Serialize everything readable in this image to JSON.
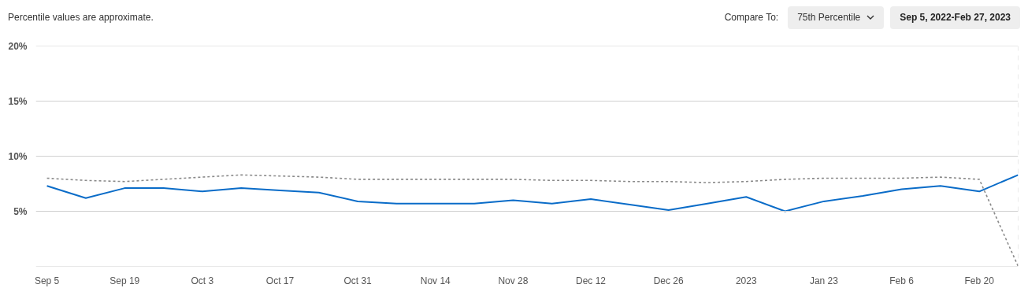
{
  "chart_data": {
    "type": "line",
    "annotations": [
      "Percentile values are approximate.",
      "Compare To:",
      "75th Percentile",
      "Sep 5, 2022-Feb 27, 2023"
    ],
    "x": [
      "2022-09-05",
      "2022-09-12",
      "2022-09-19",
      "2022-09-26",
      "2022-10-03",
      "2022-10-10",
      "2022-10-17",
      "2022-10-24",
      "2022-10-31",
      "2022-11-07",
      "2022-11-14",
      "2022-11-21",
      "2022-11-28",
      "2022-12-05",
      "2022-12-12",
      "2022-12-19",
      "2022-12-26",
      "2023-01-02",
      "2023-01-09",
      "2023-01-16",
      "2023-01-23",
      "2023-01-30",
      "2023-02-06",
      "2023-02-13",
      "2023-02-20",
      "2023-02-27"
    ],
    "series": [
      {
        "color": "#0a6cc8",
        "line_style": "solid",
        "values": [
          7.3,
          6.2,
          7.1,
          7.1,
          6.8,
          7.1,
          6.9,
          6.7,
          5.9,
          5.7,
          5.7,
          5.7,
          6.0,
          5.7,
          6.1,
          5.6,
          5.1,
          5.7,
          6.3,
          5.0,
          5.9,
          6.4,
          7.0,
          7.3,
          6.8,
          8.3
        ]
      },
      {
        "color": "#8a8a8a",
        "line_style": "dotted",
        "values": [
          8.0,
          7.8,
          7.7,
          7.9,
          8.1,
          8.3,
          8.2,
          8.1,
          7.9,
          7.9,
          7.9,
          7.9,
          7.9,
          7.8,
          7.8,
          7.7,
          7.7,
          7.6,
          7.7,
          7.9,
          8.0,
          8.0,
          8.0,
          8.1,
          7.9,
          0
        ]
      }
    ],
    "xlim": [
      "2022-09-03",
      "2023-02-27"
    ],
    "xticks": [
      {
        "value": "2022-09-05",
        "label": "Sep 5"
      },
      {
        "value": "2022-09-19",
        "label": "Sep 19"
      },
      {
        "value": "2022-10-03",
        "label": "Oct 3"
      },
      {
        "value": "2022-10-17",
        "label": "Oct 17"
      },
      {
        "value": "2022-10-31",
        "label": "Oct 31"
      },
      {
        "value": "2022-11-14",
        "label": "Nov 14"
      },
      {
        "value": "2022-11-28",
        "label": "Nov 28"
      },
      {
        "value": "2022-12-12",
        "label": "Dec 12"
      },
      {
        "value": "2022-12-26",
        "label": "Dec 26"
      },
      {
        "value": "2023-01-09",
        "label": "2023"
      },
      {
        "value": "2023-01-23",
        "label": "Jan 23"
      },
      {
        "value": "2023-02-06",
        "label": "Feb 6"
      },
      {
        "value": "2023-02-20",
        "label": "Feb 20"
      }
    ],
    "ylim": [
      0,
      20
    ],
    "yticks": [
      {
        "value": 0,
        "label": null
      },
      {
        "value": 5,
        "label": "5%"
      },
      {
        "value": 10,
        "label": "10%"
      },
      {
        "value": 15,
        "label": "15%"
      },
      {
        "value": 20,
        "label": "20%"
      }
    ],
    "grid": "y",
    "ref_lines": [
      {
        "axis": "x",
        "value": "2023-02-27",
        "color": "#d8d8d8",
        "line_style": "dashed"
      }
    ]
  }
}
